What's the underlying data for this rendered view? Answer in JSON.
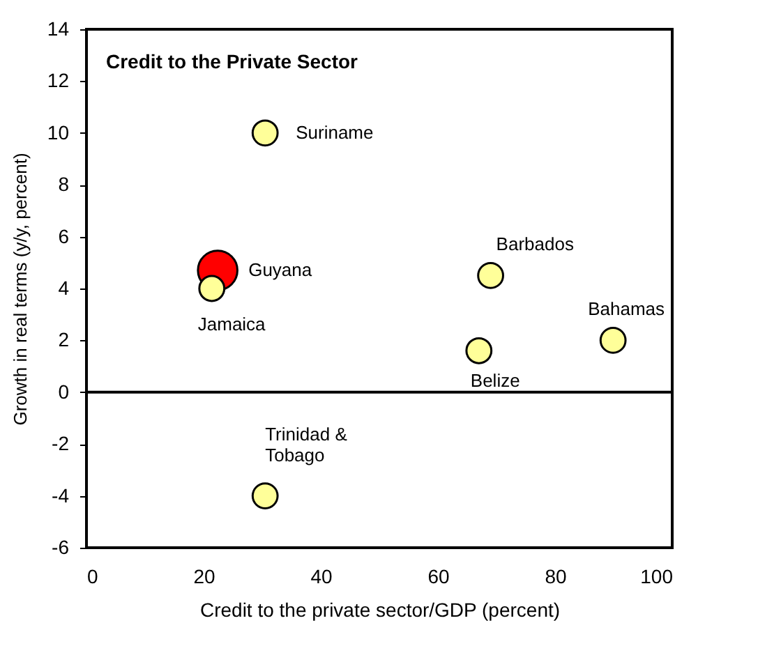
{
  "chart_data": {
    "type": "bubble",
    "title": "Credit to the Private Sector",
    "xlabel": "Credit to the private sector/GDP (percent)",
    "ylabel": "Growth in real terms  (y/y, percent)",
    "x": [
      30.5,
      22.4,
      21.4,
      69.0,
      67.0,
      89.9,
      30.5
    ],
    "values": [
      10,
      4.7,
      4.0,
      4.5,
      1.6,
      2.0,
      -4.0
    ],
    "sizes": [
      0.4,
      1,
      0.4,
      0.4,
      0.4,
      0.4,
      0.4
    ],
    "colors": [
      "#ffff99",
      "#ff0000",
      "#ffff99",
      "#ffff99",
      "#ffff99",
      "#ffff99",
      "#ffff99"
    ],
    "annotations": [
      {
        "text": "Suriname",
        "x": 30.5,
        "y": 10
      },
      {
        "text": "Guyana",
        "x": 22.4,
        "y": 4.7
      },
      {
        "text": "Jamaica",
        "x": 21.4,
        "y": 4.0
      },
      {
        "text": "Barbados",
        "x": 69.0,
        "y": 4.5
      },
      {
        "text": "Belize",
        "x": 67.0,
        "y": 1.6
      },
      {
        "text": "Bahamas",
        "x": 89.9,
        "y": 2.0
      },
      {
        "text": "Trinidad &\nTobago",
        "x": 30.5,
        "y": -4.0
      }
    ],
    "xlim": [
      0,
      100
    ],
    "xticks": [
      0,
      20,
      40,
      60,
      80,
      100
    ],
    "ylim": [
      -6,
      14
    ],
    "yticks": [
      -6,
      -4,
      -2,
      0,
      2,
      4,
      6,
      8,
      10,
      12,
      14
    ],
    "ref_lines": [
      {
        "axis": "y",
        "value": 0,
        "label": null
      }
    ],
    "grid": false,
    "legend": false
  }
}
